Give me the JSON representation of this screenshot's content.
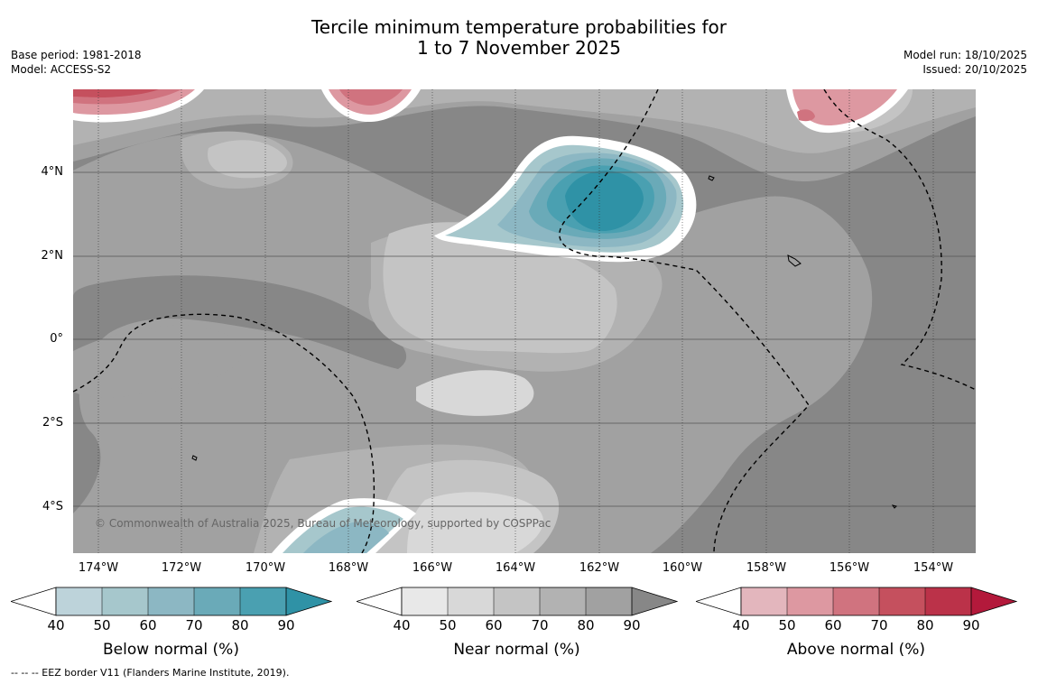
{
  "header": {
    "title_line1": "Tercile minimum temperature probabilities for",
    "title_line2": "1 to 7 November 2025",
    "base_period": "Base period: 1981-2018",
    "model": "Model: ACCESS-S2",
    "model_run": "Model run: 18/10/2025",
    "issued": "Issued: 20/10/2025"
  },
  "map": {
    "lat_labels": [
      "4°N",
      "2°N",
      "0°",
      "2°S",
      "4°S"
    ],
    "lon_labels": [
      "174°W",
      "172°W",
      "170°W",
      "168°W",
      "166°W",
      "164°W",
      "162°W",
      "160°W",
      "158°W",
      "156°W",
      "154°W"
    ],
    "copyright": "© Commonwealth of Australia 2025, Bureau of Meteorology, supported by COSPPac",
    "colors": {
      "near_normal_90": "#878787",
      "near_normal_80": "#a1a1a1",
      "near_normal_70": "#b2b2b2",
      "near_normal_60": "#c4c4c4",
      "near_normal_50": "#d8d8d8",
      "below_50": "#a6c7cc",
      "below_60": "#8cb7c3",
      "below_70": "#6aaab8",
      "below_80": "#4aa0b1",
      "below_90": "#2f92a6",
      "above_50": "#dd98a1",
      "above_60": "#d0737f",
      "above_70": "#c5505e"
    }
  },
  "legends": [
    {
      "label": "Below normal (%)",
      "ticks": [
        "40",
        "50",
        "60",
        "70",
        "80",
        "90"
      ],
      "colors": [
        "#bdd3da",
        "#a6c7cc",
        "#8cb7c3",
        "#6aaab8",
        "#4aa0b1",
        "#2f92a6"
      ]
    },
    {
      "label": "Near normal (%)",
      "ticks": [
        "40",
        "50",
        "60",
        "70",
        "80",
        "90"
      ],
      "colors": [
        "#e8e8e8",
        "#d8d8d8",
        "#c4c4c4",
        "#b2b2b2",
        "#a1a1a1",
        "#878787"
      ]
    },
    {
      "label": "Above normal (%)",
      "ticks": [
        "40",
        "50",
        "60",
        "70",
        "80",
        "90"
      ],
      "colors": [
        "#e3b6bd",
        "#dd98a1",
        "#d0737f",
        "#c5505e",
        "#bb3249",
        "#b3193b"
      ]
    }
  ],
  "footnote": "--  --  -- EEZ border V11 (Flanders Marine Institute, 2019)."
}
